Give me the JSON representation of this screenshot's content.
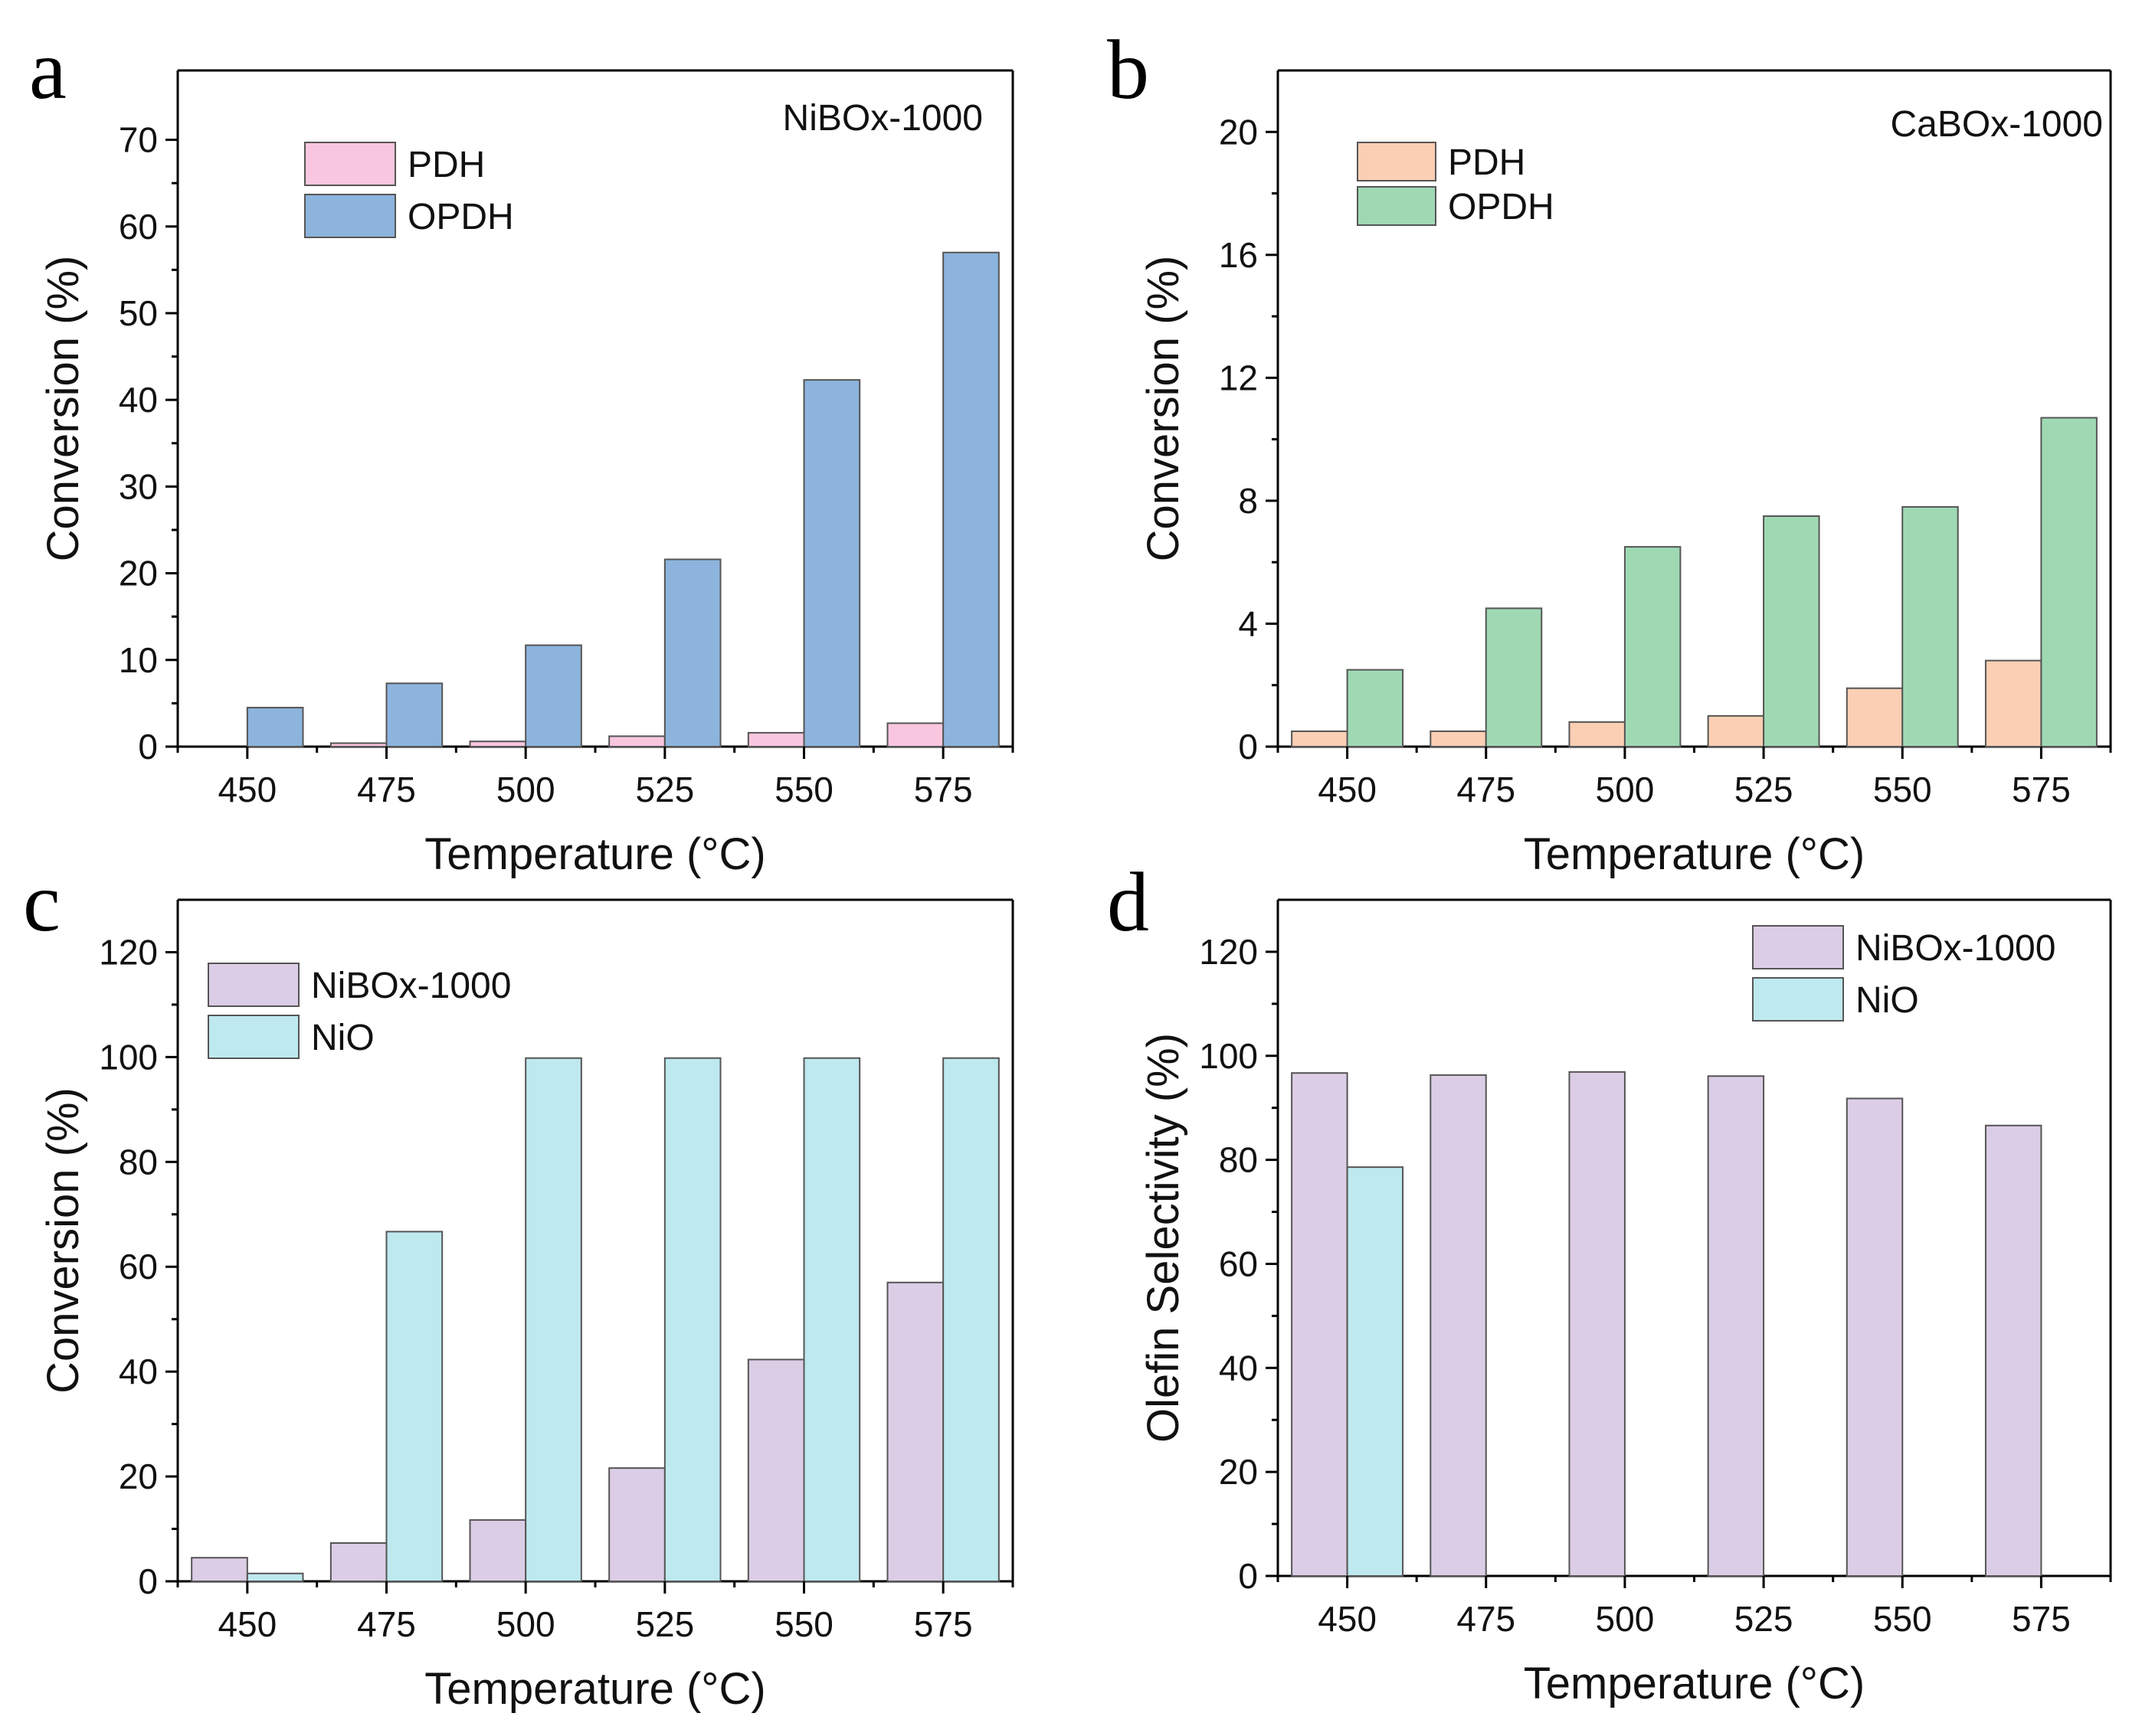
{
  "chart_data": [
    {
      "panel": "a",
      "type": "bar",
      "inset_title": "NiBOx-1000",
      "categories": [
        "450",
        "475",
        "500",
        "525",
        "550",
        "575"
      ],
      "series": [
        {
          "name": "PDH",
          "color": "#f9c6e0",
          "values": [
            0.0,
            0.4,
            0.6,
            1.2,
            1.6,
            2.7
          ]
        },
        {
          "name": "OPDH",
          "color": "#8db4dd",
          "values": [
            4.5,
            7.3,
            11.7,
            21.6,
            42.3,
            57.0
          ]
        }
      ],
      "yticks": [
        0,
        10,
        20,
        30,
        40,
        50,
        60,
        70
      ],
      "ylim": [
        0,
        78
      ],
      "xlabel": "Temperature (°C)",
      "ylabel": "Conversion (%)"
    },
    {
      "panel": "b",
      "type": "bar",
      "inset_title": "CaBOx-1000",
      "categories": [
        "450",
        "475",
        "500",
        "525",
        "550",
        "575"
      ],
      "series": [
        {
          "name": "PDH",
          "color": "#fbcfb3",
          "values": [
            0.5,
            0.5,
            0.8,
            1.0,
            1.9,
            2.8
          ]
        },
        {
          "name": "OPDH",
          "color": "#9fd9b4",
          "values": [
            2.5,
            4.5,
            6.5,
            7.5,
            7.8,
            10.7
          ]
        }
      ],
      "yticks": [
        0,
        4,
        8,
        12,
        16,
        20
      ],
      "ylim": [
        0,
        22
      ],
      "xlabel": "Temperature (°C)",
      "ylabel": "Conversion (%)"
    },
    {
      "panel": "c",
      "type": "bar",
      "inset_title": "",
      "categories": [
        "450",
        "475",
        "500",
        "525",
        "550",
        "575"
      ],
      "series": [
        {
          "name": "NiBOx-1000",
          "color": "#dccde6",
          "values": [
            4.5,
            7.3,
            11.7,
            21.6,
            42.3,
            57.0
          ]
        },
        {
          "name": "NiO",
          "color": "#bde9ef",
          "values": [
            1.5,
            66.7,
            99.8,
            99.8,
            99.8,
            99.8
          ]
        }
      ],
      "yticks": [
        0,
        20,
        40,
        60,
        80,
        100,
        120
      ],
      "ylim": [
        0,
        130
      ],
      "xlabel": "Temperature (°C)",
      "ylabel": "Conversion (%)"
    },
    {
      "panel": "d",
      "type": "bar",
      "inset_title": "",
      "categories": [
        "450",
        "475",
        "500",
        "525",
        "550",
        "575"
      ],
      "series": [
        {
          "name": "NiBOx-1000",
          "color": "#dccde6",
          "values": [
            96.7,
            96.3,
            96.9,
            96.1,
            91.8,
            86.6
          ]
        },
        {
          "name": "NiO",
          "color": "#bde9ef",
          "values": [
            78.6,
            null,
            null,
            null,
            null,
            null
          ]
        }
      ],
      "yticks": [
        0,
        20,
        40,
        60,
        80,
        100,
        120
      ],
      "ylim": [
        0,
        130
      ],
      "xlabel": "Temperature (°C)",
      "ylabel": "Olefin Selectivity (%)"
    }
  ]
}
